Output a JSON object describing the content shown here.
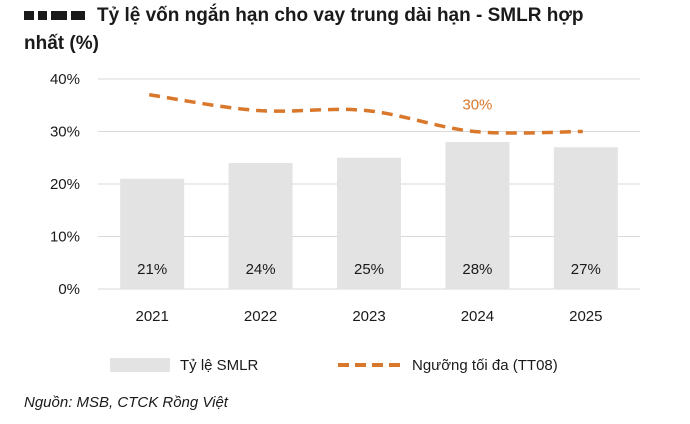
{
  "title": {
    "line1": "Tỷ lệ vốn ngắn hạn cho vay trung dài hạn - SMLR hợp",
    "line2": "nhất (%)"
  },
  "source": "Nguồn: MSB, CTCK Rồng Việt",
  "colors": {
    "bar": "#e3e3e3",
    "line": "#d9772b",
    "grid": "#d9d9d9",
    "text": "#1a1a1a"
  },
  "chart_data": {
    "type": "bar",
    "categories": [
      "2021",
      "2022",
      "2023",
      "2024",
      "2025"
    ],
    "series": [
      {
        "name": "Tỷ lệ SMLR",
        "type": "bar",
        "values": [
          21,
          24,
          25,
          28,
          27
        ],
        "labels": [
          "21%",
          "24%",
          "25%",
          "28%",
          "27%"
        ]
      },
      {
        "name": "Ngưỡng tối đa (TT08)",
        "type": "line",
        "style": "dashed",
        "values": [
          37,
          34,
          34,
          30,
          30
        ]
      }
    ],
    "annotations": [
      {
        "text": "30%",
        "series": "Ngưỡng tối đa (TT08)",
        "category": "2024"
      }
    ],
    "yticks": [
      "0%",
      "10%",
      "20%",
      "30%",
      "40%"
    ],
    "ylim": [
      0,
      40
    ],
    "grid": true,
    "legend": "bottom"
  }
}
